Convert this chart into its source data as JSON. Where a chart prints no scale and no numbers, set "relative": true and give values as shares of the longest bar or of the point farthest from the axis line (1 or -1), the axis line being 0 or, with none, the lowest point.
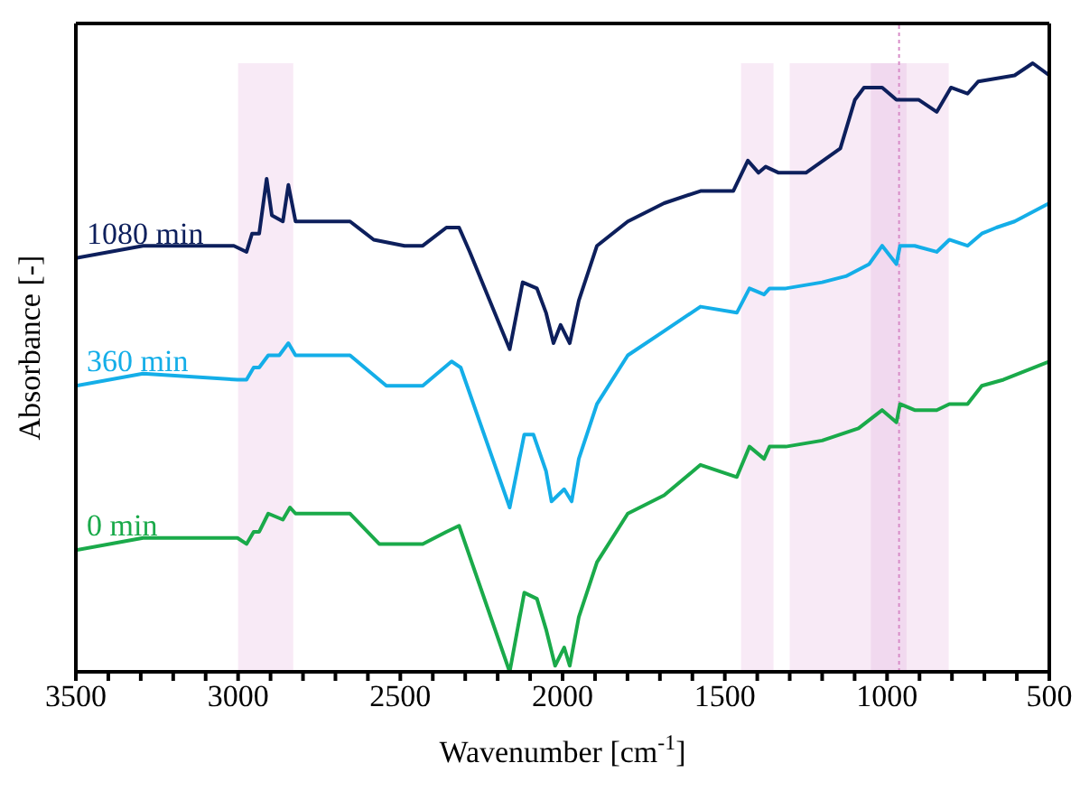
{
  "chart_data": {
    "type": "line",
    "relative": true,
    "xlabel": "Wavenumber [cm$^{-1}$]",
    "ylabel": "Absorbance [-]",
    "xlim": [
      3500,
      500
    ],
    "xticks": [
      3500,
      {
        "value": 3400,
        "label": null
      },
      {
        "value": 3300,
        "label": null
      },
      {
        "value": 3200,
        "label": null
      },
      {
        "value": 3100,
        "label": null
      },
      3000,
      {
        "value": 2900,
        "label": null
      },
      {
        "value": 2800,
        "label": null
      },
      {
        "value": 2700,
        "label": null
      },
      {
        "value": 2600,
        "label": null
      },
      2500,
      {
        "value": 2400,
        "label": null
      },
      {
        "value": 2300,
        "label": null
      },
      {
        "value": 2200,
        "label": null
      },
      {
        "value": 2100,
        "label": null
      },
      2000,
      {
        "value": 1900,
        "label": null
      },
      {
        "value": 1800,
        "label": null
      },
      {
        "value": 1700,
        "label": null
      },
      {
        "value": 1600,
        "label": null
      },
      1500,
      {
        "value": 1400,
        "label": null
      },
      {
        "value": 1300,
        "label": null
      },
      {
        "value": 1200,
        "label": null
      },
      {
        "value": 1100,
        "label": null
      },
      1000,
      {
        "value": 900,
        "label": null
      },
      {
        "value": 800,
        "label": null
      },
      {
        "value": 700,
        "label": null
      },
      {
        "value": 600,
        "label": null
      },
      500
    ],
    "legend": false,
    "marker": "none",
    "line_style": "solid",
    "bands": [
      {
        "axis": "x",
        "from": 3000,
        "to": 2830,
        "color": "#f8eaf6"
      },
      {
        "axis": "x",
        "from": 1450,
        "to": 1350,
        "color": "#f8eaf6"
      },
      {
        "axis": "x",
        "from": 1300,
        "to": 810,
        "color": "#f8eaf6"
      },
      {
        "axis": "x",
        "from": 1050,
        "to": 940,
        "color": "#f1d9ef"
      }
    ],
    "ref_lines": [
      {
        "axis": "x",
        "value": 963,
        "color": "#d88cc8",
        "line_style": "dotted"
      }
    ],
    "series": [
      {
        "name": "1080 min",
        "color": "#0d1f5c",
        "x": [
          3500,
          3293,
          3013,
          2974,
          2957,
          2935,
          2912,
          2896,
          2862,
          2845,
          2823,
          2789,
          2655,
          2582,
          2487,
          2431,
          2358,
          2319,
          2286,
          2163,
          2123,
          2079,
          2051,
          2028,
          2006,
          1978,
          1950,
          1894,
          1799,
          1687,
          1575,
          1474,
          1429,
          1396,
          1374,
          1334,
          1250,
          1144,
          1099,
          1071,
          1015,
          971,
          903,
          847,
          803,
          752,
          719,
          607,
          551,
          500
        ],
        "values": [
          0.68,
          0.7,
          0.7,
          0.69,
          0.72,
          0.72,
          0.81,
          0.75,
          0.74,
          0.8,
          0.74,
          0.74,
          0.74,
          0.71,
          0.7,
          0.7,
          0.73,
          0.73,
          0.69,
          0.53,
          0.64,
          0.63,
          0.59,
          0.54,
          0.57,
          0.54,
          0.61,
          0.7,
          0.74,
          0.77,
          0.79,
          0.79,
          0.84,
          0.82,
          0.83,
          0.82,
          0.82,
          0.86,
          0.94,
          0.96,
          0.96,
          0.94,
          0.94,
          0.92,
          0.96,
          0.95,
          0.97,
          0.98,
          1.0,
          0.98
        ]
      },
      {
        "name": "360 min",
        "color": "#14aee8",
        "x": [
          3500,
          3293,
          3002,
          2974,
          2952,
          2935,
          2907,
          2873,
          2845,
          2823,
          2655,
          2543,
          2431,
          2342,
          2314,
          2163,
          2118,
          2090,
          2051,
          2034,
          1995,
          1972,
          1950,
          1894,
          1799,
          1687,
          1575,
          1463,
          1424,
          1379,
          1362,
          1312,
          1200,
          1127,
          1055,
          1015,
          971,
          960,
          915,
          847,
          808,
          752,
          708,
          663,
          607,
          500
        ],
        "values": [
          0.47,
          0.49,
          0.48,
          0.48,
          0.5,
          0.5,
          0.52,
          0.52,
          0.54,
          0.52,
          0.52,
          0.47,
          0.47,
          0.51,
          0.5,
          0.27,
          0.39,
          0.39,
          0.33,
          0.28,
          0.3,
          0.28,
          0.35,
          0.44,
          0.52,
          0.56,
          0.6,
          0.59,
          0.63,
          0.62,
          0.63,
          0.63,
          0.64,
          0.65,
          0.67,
          0.7,
          0.67,
          0.7,
          0.7,
          0.69,
          0.71,
          0.7,
          0.72,
          0.73,
          0.74,
          0.77
        ]
      },
      {
        "name": "0 min",
        "color": "#1aaa4a",
        "x": [
          3500,
          3293,
          3002,
          2974,
          2952,
          2935,
          2907,
          2862,
          2840,
          2823,
          2655,
          2565,
          2431,
          2358,
          2319,
          2163,
          2118,
          2079,
          2051,
          2023,
          1995,
          1978,
          1950,
          1894,
          1799,
          1687,
          1575,
          1463,
          1424,
          1379,
          1362,
          1312,
          1200,
          1088,
          1015,
          971,
          960,
          915,
          847,
          808,
          752,
          708,
          641,
          500
        ],
        "values": [
          0.2,
          0.22,
          0.22,
          0.21,
          0.23,
          0.23,
          0.26,
          0.25,
          0.27,
          0.26,
          0.26,
          0.21,
          0.21,
          0.23,
          0.24,
          0.0,
          0.13,
          0.12,
          0.07,
          0.01,
          0.04,
          0.01,
          0.09,
          0.18,
          0.26,
          0.29,
          0.34,
          0.32,
          0.37,
          0.35,
          0.37,
          0.37,
          0.38,
          0.4,
          0.43,
          0.41,
          0.44,
          0.43,
          0.43,
          0.44,
          0.44,
          0.47,
          0.48,
          0.51
        ]
      }
    ]
  }
}
